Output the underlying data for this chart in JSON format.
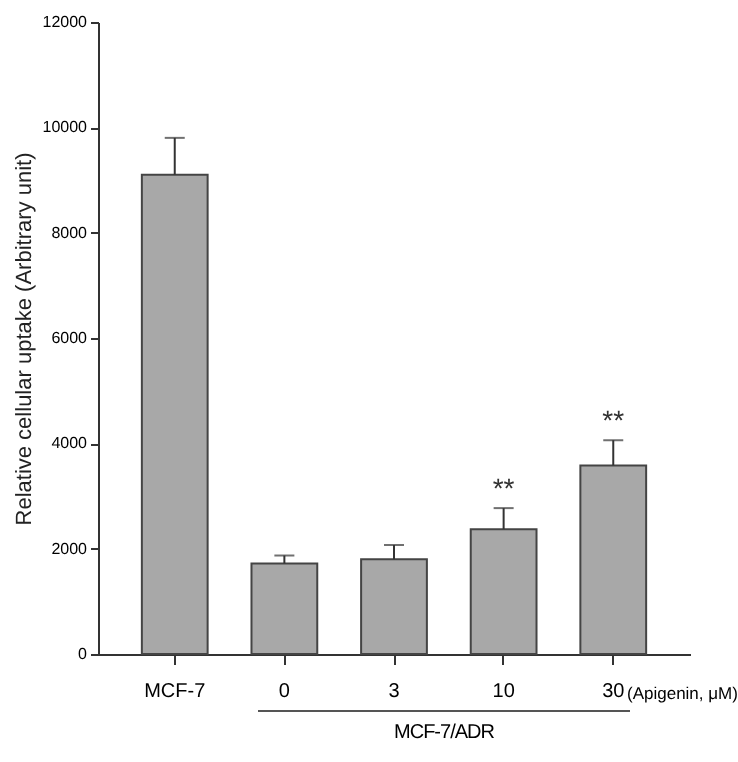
{
  "chart_data": {
    "type": "bar",
    "categories": [
      "MCF-7",
      "0",
      "3",
      "10",
      "30"
    ],
    "values": [
      9100,
      1720,
      1800,
      2370,
      3580
    ],
    "errors": [
      700,
      150,
      270,
      400,
      480
    ],
    "color": "#a8a8a8",
    "xlabel": "(Apigenin, μM)",
    "ylabel": "Relative cellular uptake (Arbitrary unit)",
    "ylim": [
      0,
      12000
    ],
    "yticks": [
      0,
      2000,
      4000,
      6000,
      8000,
      10000,
      12000
    ],
    "annotations": [
      {
        "text": "**",
        "x": "10",
        "y": 2770
      },
      {
        "text": "**",
        "x": "30",
        "y": 4060
      },
      "MCF-7/ADR"
    ],
    "grid": false
  }
}
